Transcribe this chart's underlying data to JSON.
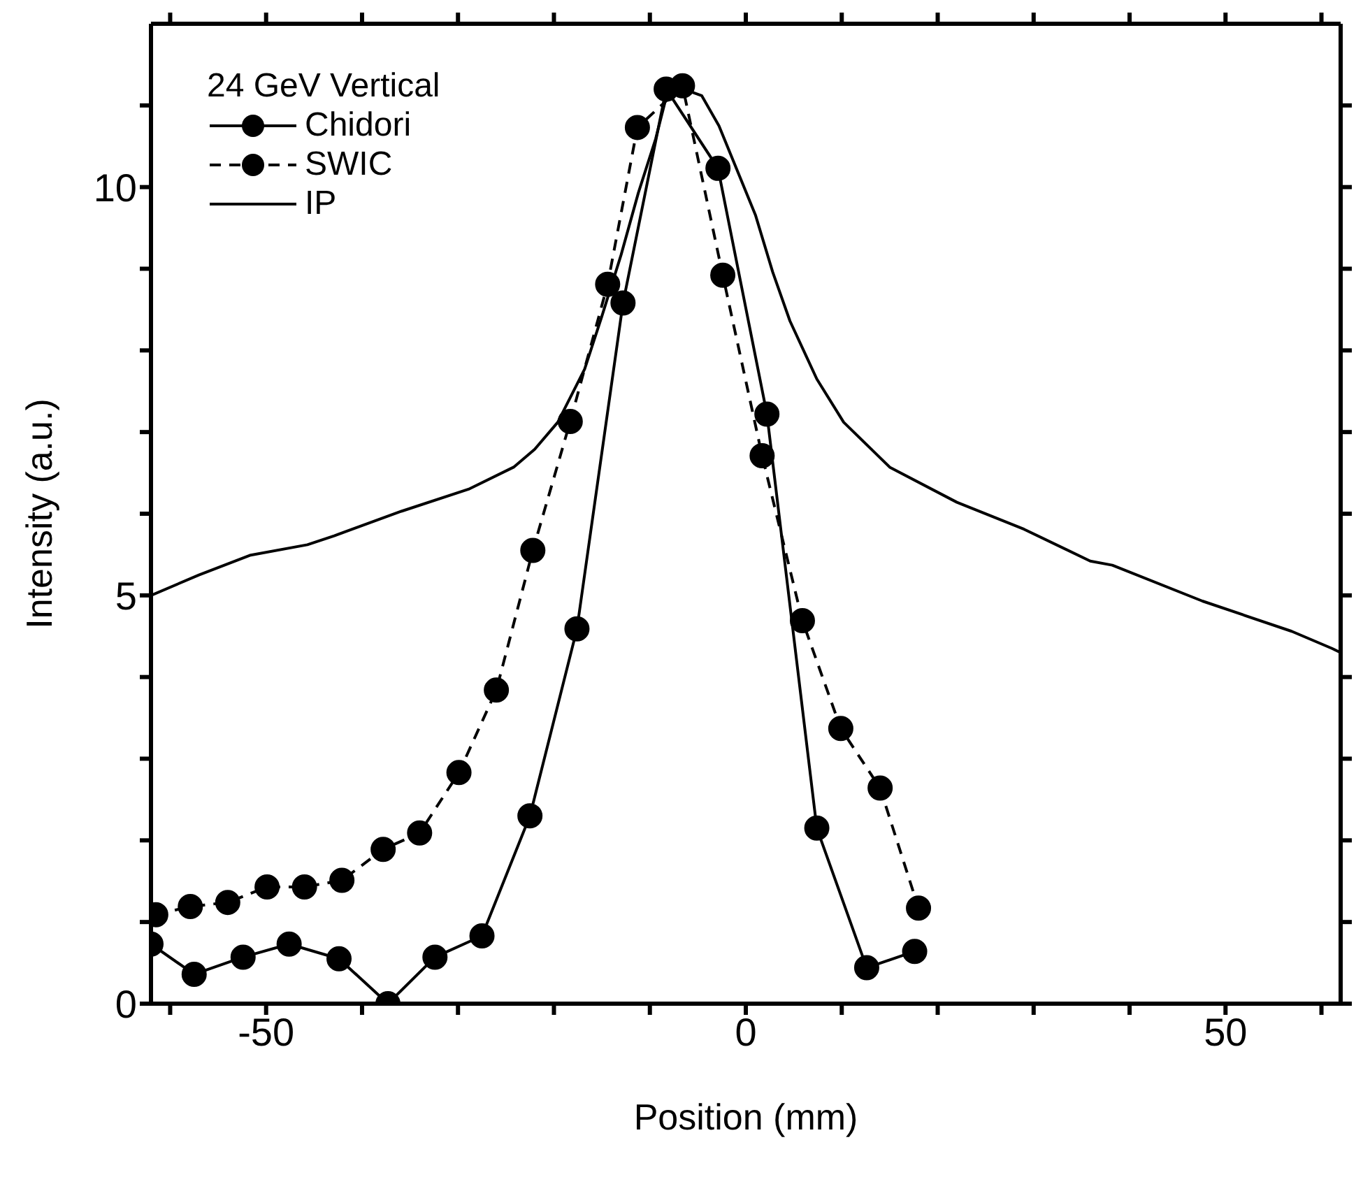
{
  "chart_data": {
    "type": "line",
    "xlabel": "Position (mm)",
    "ylabel": "Intensity (a.u.)",
    "legend_title": "24 GeV Vertical",
    "legend": "top left",
    "grid": false,
    "xlim": [
      -62,
      62
    ],
    "ylim": [
      0,
      12
    ],
    "xticks": [
      {
        "value": -60,
        "label": null
      },
      -50,
      {
        "value": -40,
        "label": null
      },
      {
        "value": -30,
        "label": null
      },
      {
        "value": -20,
        "label": null
      },
      {
        "value": -10,
        "label": null
      },
      0,
      {
        "value": 10,
        "label": null
      },
      {
        "value": 20,
        "label": null
      },
      {
        "value": 30,
        "label": null
      },
      {
        "value": 40,
        "label": null
      },
      50,
      {
        "value": 60,
        "label": null
      }
    ],
    "yticks": [
      0,
      {
        "value": 1,
        "label": null
      },
      {
        "value": 2,
        "label": null
      },
      {
        "value": 3,
        "label": null
      },
      {
        "value": 4,
        "label": null
      },
      5,
      {
        "value": 6,
        "label": null
      },
      {
        "value": 7,
        "label": null
      },
      {
        "value": 8,
        "label": null
      },
      {
        "value": 9,
        "label": null
      },
      10,
      {
        "value": 11,
        "label": null
      }
    ],
    "series": [
      {
        "name": "Chidori",
        "color": "#000000",
        "marker": "circle",
        "line_style": "solid",
        "x": [
          -62,
          -57.5,
          -52.4,
          -47.6,
          -42.4,
          -37.3,
          -32.4,
          -27.5,
          -22.5,
          -17.6,
          -12.8,
          -8.3,
          -2.9,
          2.2,
          7.4,
          12.6,
          17.6
        ],
        "values": [
          0.73,
          0.36,
          0.57,
          0.73,
          0.55,
          0,
          0.57,
          0.83,
          2.3,
          4.59,
          8.58,
          11.2,
          10.23,
          7.22,
          2.15,
          0.44,
          0.64
        ]
      },
      {
        "name": "SWIC",
        "color": "#000000",
        "marker": "circle",
        "line_style": "dashed",
        "x": [
          -61.5,
          -57.9,
          -54,
          -49.9,
          -46,
          -42.1,
          -37.8,
          -34,
          -29.9,
          -26,
          -22.2,
          -18.3,
          -14.4,
          -11.3,
          -6.6,
          -2.4,
          1.7,
          5.9,
          9.9,
          14,
          18
        ],
        "values": [
          1.09,
          1.19,
          1.24,
          1.43,
          1.43,
          1.51,
          1.89,
          2.09,
          2.83,
          3.84,
          5.55,
          7.13,
          8.81,
          10.73,
          11.24,
          8.92,
          6.71,
          4.69,
          3.37,
          2.64,
          1.17
        ]
      },
      {
        "name": "IP",
        "color": "#000000",
        "marker": "none",
        "line_style": "solid",
        "x": [
          -62,
          -57,
          -51.7,
          -45.7,
          -42.9,
          -35.9,
          -28.9,
          -24.2,
          -22,
          -19.6,
          -16.8,
          -15,
          -13,
          -11.2,
          -9.4,
          -8.1,
          -6.5,
          -4.6,
          -2.8,
          1,
          2.8,
          4.6,
          7.4,
          10.2,
          15,
          22,
          29,
          35.9,
          38.2,
          47.6,
          56.9,
          61.1,
          62
        ],
        "values": [
          5.0,
          5.25,
          5.49,
          5.62,
          5.73,
          6.03,
          6.3,
          6.57,
          6.79,
          7.12,
          7.77,
          8.42,
          9.17,
          9.93,
          10.59,
          11.19,
          11.2,
          11.12,
          10.75,
          9.66,
          8.96,
          8.36,
          7.65,
          7.12,
          6.57,
          6.14,
          5.81,
          5.42,
          5.37,
          4.93,
          4.56,
          4.35,
          4.3
        ]
      }
    ]
  }
}
